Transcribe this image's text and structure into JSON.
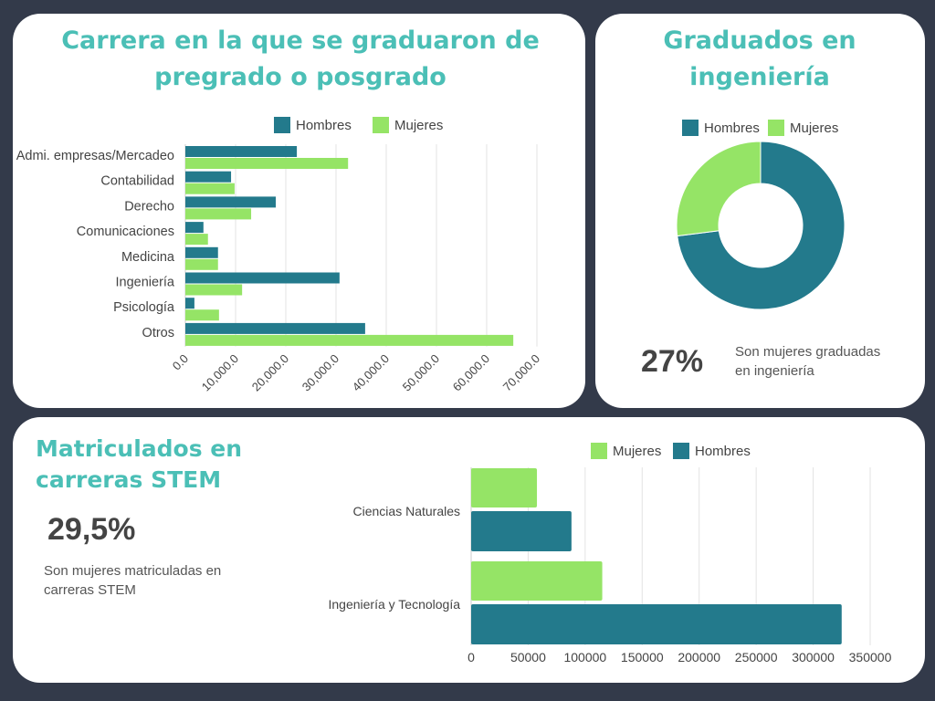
{
  "colors": {
    "hombres": "#237a8c",
    "mujeres": "#95e466",
    "title": "#4bbfb6"
  },
  "chart_data": [
    {
      "type": "bar",
      "orientation": "horizontal",
      "title": "Carrera en la que se graduaron de pregrado o posgrado",
      "categories": [
        "Admi. empresas/Mercadeo",
        "Contabilidad",
        "Derecho",
        "Comunicaciones",
        "Medicina",
        "Ingeniería",
        "Psicología",
        "Otros"
      ],
      "series": [
        {
          "name": "Hombres",
          "values": [
            22200,
            9100,
            18000,
            3600,
            6500,
            30700,
            1800,
            35800
          ]
        },
        {
          "name": "Mujeres",
          "values": [
            32400,
            9800,
            13100,
            4500,
            6500,
            11300,
            6700,
            65300
          ]
        }
      ],
      "xlim": [
        0,
        70000
      ],
      "ticks": [
        "0.0",
        "10,000.0",
        "20,000.0",
        "30,000.0",
        "40,000.0",
        "50,000.0",
        "60,000.0",
        "70,000.0"
      ],
      "grid": true,
      "legend": "top"
    },
    {
      "type": "pie",
      "donut": true,
      "title": "Graduados en ingeniería",
      "categories": [
        "Hombres",
        "Mujeres"
      ],
      "values": [
        73,
        27
      ],
      "legend": "top"
    },
    {
      "type": "bar",
      "orientation": "horizontal",
      "categories": [
        "Ciencias Naturales",
        "Ingeniería y Tecnología"
      ],
      "series": [
        {
          "name": "Mujeres",
          "values": [
            57700,
            115000
          ]
        },
        {
          "name": "Hombres",
          "values": [
            88000,
            325000
          ]
        }
      ],
      "xlim": [
        0,
        350000
      ],
      "ticks": [
        "0",
        "50000",
        "100000",
        "150000",
        "200000",
        "250000",
        "300000",
        "350000"
      ],
      "grid": true,
      "legend": "top"
    }
  ],
  "card1": {
    "title": "Carrera en la que se graduaron de pregrado o posgrado"
  },
  "card2": {
    "title": "Graduados en ingeniería",
    "stat": "27%",
    "note": "Son mujeres graduadas en ingeniería"
  },
  "card3": {
    "title": "Matriculados en carreras STEM",
    "stat": "29,5%",
    "note": "Son mujeres matriculadas en carreras STEM"
  }
}
